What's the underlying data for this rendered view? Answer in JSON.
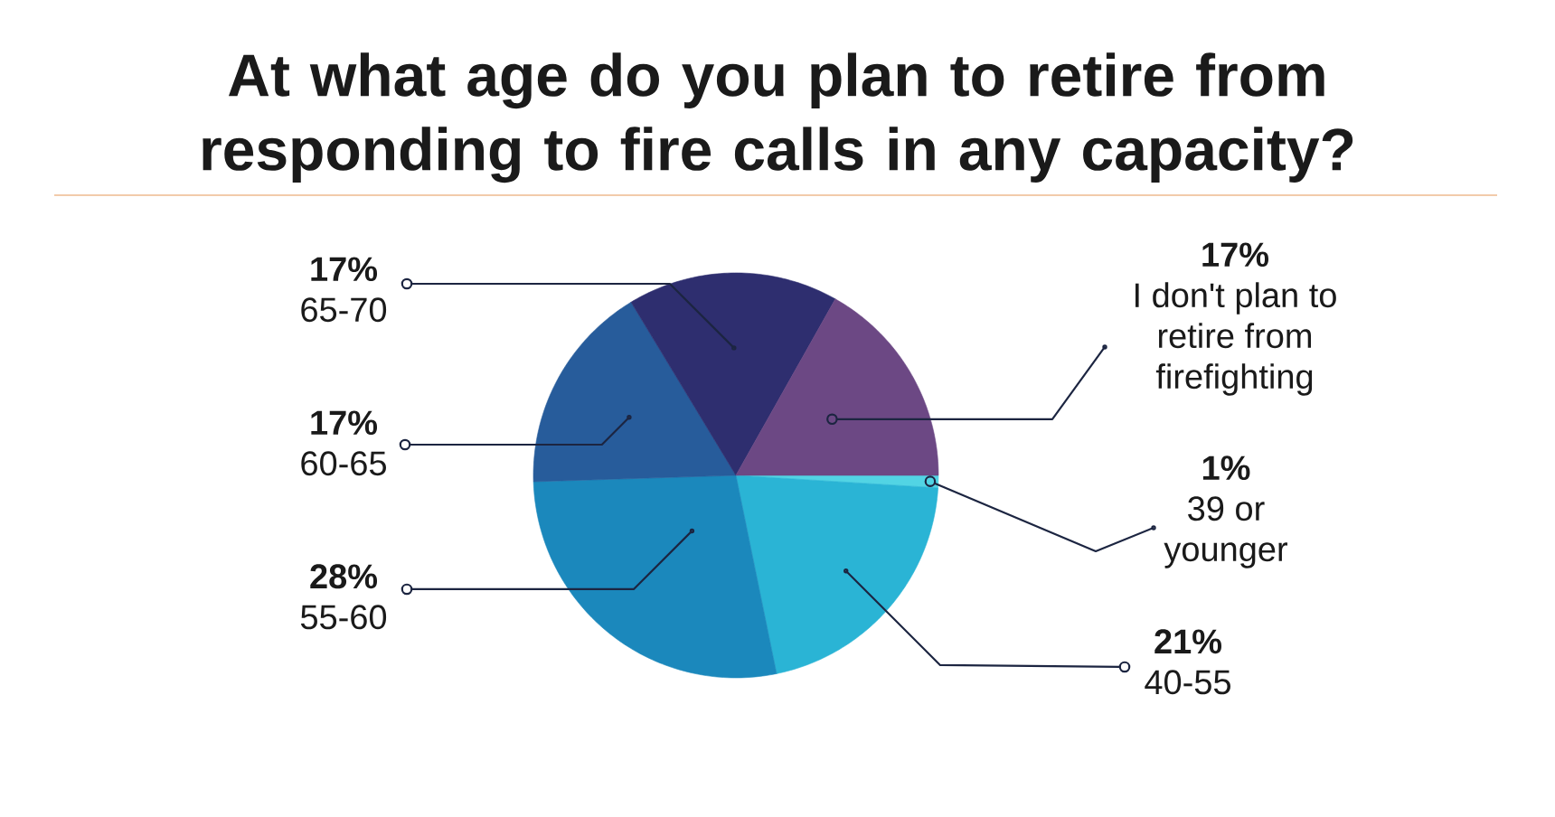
{
  "chart_data": {
    "type": "pie",
    "title": "At what age do you plan to retire from responding to fire calls in any capacity?",
    "categories": [
      "39 or younger",
      "40-55",
      "55-60",
      "60-65",
      "65-70",
      "I don't plan to retire from firefighting"
    ],
    "values": [
      1,
      21,
      28,
      17,
      17,
      17
    ],
    "value_labels": [
      "1%",
      "21%",
      "28%",
      "17%",
      "17%",
      "17%"
    ],
    "colors": [
      "#52d4e4",
      "#2ab4d5",
      "#1b88bc",
      "#275c9b",
      "#2e2e6f",
      "#6c4884"
    ]
  }
}
